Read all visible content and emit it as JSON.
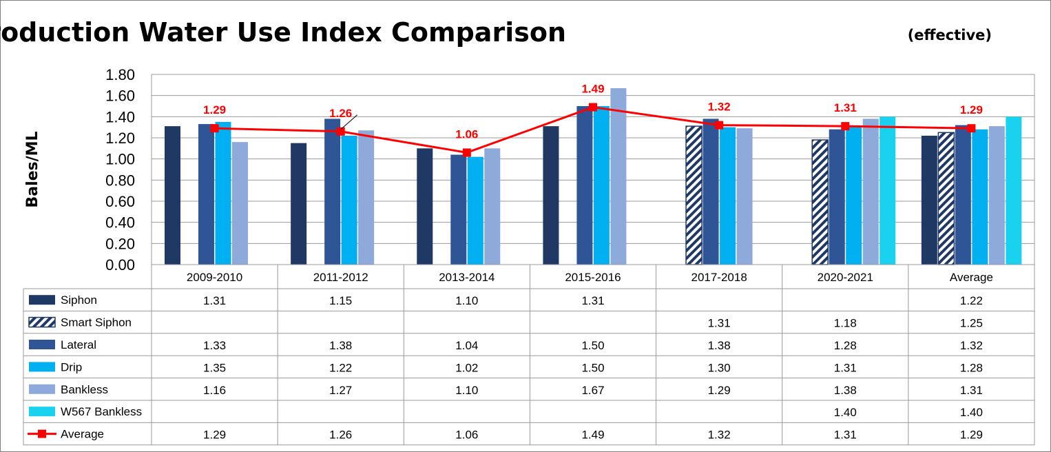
{
  "chart_data": {
    "type": "bar",
    "title": "Gross Production Water Use Index Comparison",
    "subtitle": "(effective)",
    "ylabel": "Bales/ML",
    "xlabel": "",
    "ylim": [
      0,
      1.8
    ],
    "yticks": [
      "0.00",
      "0.20",
      "0.40",
      "0.60",
      "0.80",
      "1.00",
      "1.20",
      "1.40",
      "1.60",
      "1.80"
    ],
    "grid": true,
    "legend_placement": "data-table-left",
    "categories": [
      "2009-2010",
      "2011-2012",
      "2013-2014",
      "2015-2016",
      "2017-2018",
      "2020-2021",
      "Average"
    ],
    "series": [
      {
        "name": "Siphon",
        "color": "#1f3864",
        "pattern": "solid",
        "values": [
          1.31,
          1.15,
          1.1,
          1.31,
          null,
          null,
          1.22
        ],
        "labels": [
          "1.31",
          "1.15",
          "1.10",
          "1.31",
          "",
          "",
          "1.22"
        ]
      },
      {
        "name": "Smart Siphon",
        "color": "#1f3864",
        "pattern": "hatched",
        "values": [
          null,
          null,
          null,
          null,
          1.31,
          1.18,
          1.25
        ],
        "labels": [
          "",
          "",
          "",
          "",
          "1.31",
          "1.18",
          "1.25"
        ]
      },
      {
        "name": "Lateral",
        "color": "#2f5597",
        "pattern": "solid",
        "values": [
          1.33,
          1.38,
          1.04,
          1.5,
          1.38,
          1.28,
          1.32
        ],
        "labels": [
          "1.33",
          "1.38",
          "1.04",
          "1.50",
          "1.38",
          "1.28",
          "1.32"
        ]
      },
      {
        "name": "Drip",
        "color": "#00b0f0",
        "pattern": "solid",
        "values": [
          1.35,
          1.22,
          1.02,
          1.5,
          1.3,
          1.31,
          1.28
        ],
        "labels": [
          "1.35",
          "1.22",
          "1.02",
          "1.50",
          "1.30",
          "1.31",
          "1.28"
        ]
      },
      {
        "name": "Bankless",
        "color": "#8eaadb",
        "pattern": "solid",
        "values": [
          1.16,
          1.27,
          1.1,
          1.67,
          1.29,
          1.38,
          1.31
        ],
        "labels": [
          "1.16",
          "1.27",
          "1.10",
          "1.67",
          "1.29",
          "1.38",
          "1.31"
        ]
      },
      {
        "name": "W567 Bankless",
        "color": "#19d2f0",
        "pattern": "solid",
        "values": [
          null,
          null,
          null,
          null,
          null,
          1.4,
          1.4
        ],
        "labels": [
          "",
          "",
          "",
          "",
          "",
          "1.40",
          "1.40"
        ]
      }
    ],
    "line_series": {
      "name": "Average",
      "color": "#ff0000",
      "values": [
        1.29,
        1.26,
        1.06,
        1.49,
        1.32,
        1.31,
        1.29
      ],
      "labels": [
        "1.29",
        "1.26",
        "1.06",
        "1.49",
        "1.32",
        "1.31",
        "1.29"
      ]
    }
  }
}
